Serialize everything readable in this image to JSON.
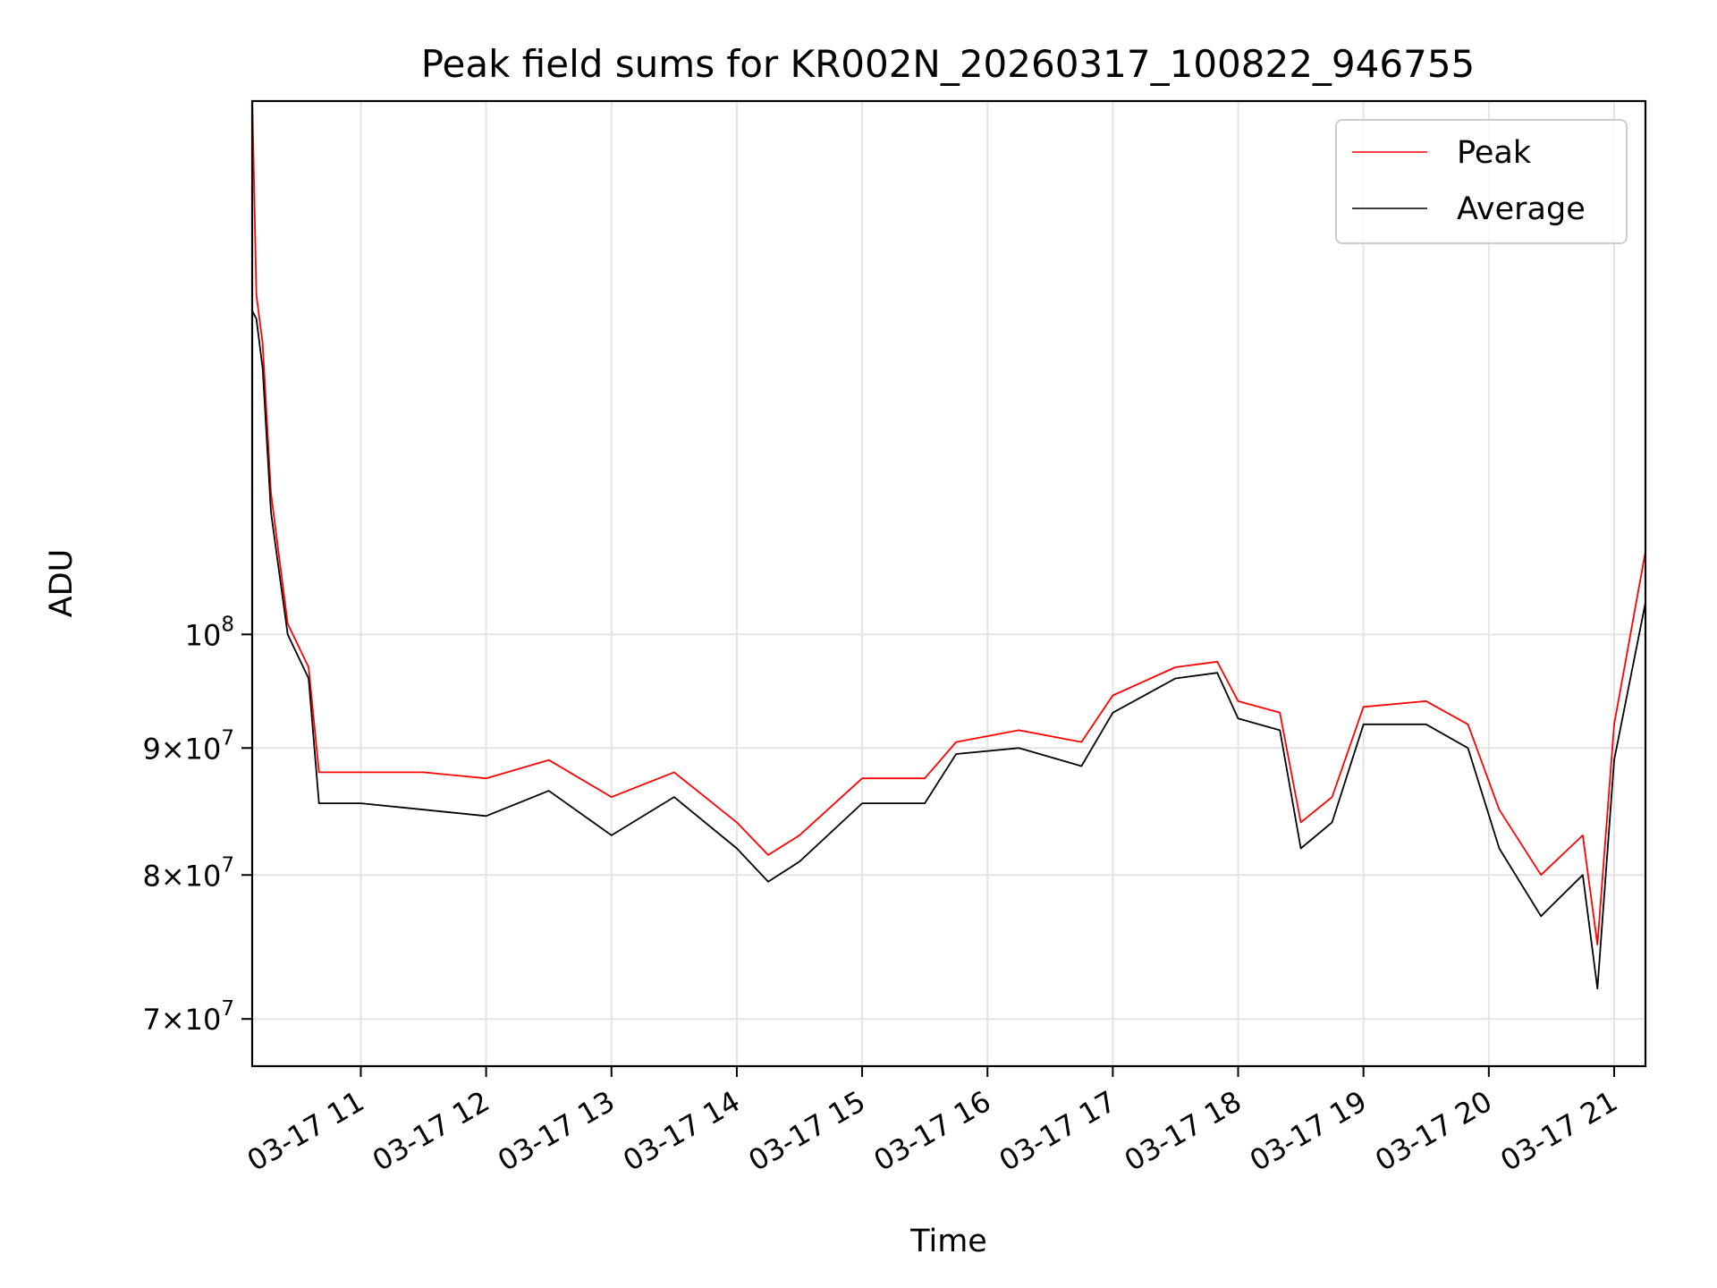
{
  "chart_data": {
    "type": "line",
    "title": "Peak field sums for KR002N_20260317_100822_946755",
    "xlabel": "Time",
    "ylabel": "ADU",
    "yscale": "log",
    "ylim": [
      67000000,
      164000000
    ],
    "xlim": [
      "2026-03-17T10:08",
      "2026-03-17T21:15"
    ],
    "grid": true,
    "legend_position": "upper right",
    "x_ticks": [
      {
        "value": "2026-03-17T11:00",
        "label": "03-17 11"
      },
      {
        "value": "2026-03-17T12:00",
        "label": "03-17 12"
      },
      {
        "value": "2026-03-17T13:00",
        "label": "03-17 13"
      },
      {
        "value": "2026-03-17T14:00",
        "label": "03-17 14"
      },
      {
        "value": "2026-03-17T15:00",
        "label": "03-17 15"
      },
      {
        "value": "2026-03-17T16:00",
        "label": "03-17 16"
      },
      {
        "value": "2026-03-17T17:00",
        "label": "03-17 17"
      },
      {
        "value": "2026-03-17T18:00",
        "label": "03-17 18"
      },
      {
        "value": "2026-03-17T19:00",
        "label": "03-17 19"
      },
      {
        "value": "2026-03-17T20:00",
        "label": "03-17 20"
      },
      {
        "value": "2026-03-17T21:00",
        "label": "03-17 21"
      }
    ],
    "y_ticks": [
      {
        "value": 70000000,
        "base": "7",
        "exp": "7"
      },
      {
        "value": 80000000,
        "base": "8",
        "exp": "7"
      },
      {
        "value": 90000000,
        "base": "9",
        "exp": "7"
      },
      {
        "value": 100000000,
        "base": "",
        "exp": "8"
      }
    ],
    "series": [
      {
        "name": "Peak",
        "color": "#ff0000",
        "x": [
          "2026-03-17T10:08",
          "2026-03-17T10:10",
          "2026-03-17T10:13",
          "2026-03-17T10:17",
          "2026-03-17T10:25",
          "2026-03-17T10:35",
          "2026-03-17T10:40",
          "2026-03-17T11:00",
          "2026-03-17T11:30",
          "2026-03-17T12:00",
          "2026-03-17T12:30",
          "2026-03-17T13:00",
          "2026-03-17T13:30",
          "2026-03-17T14:00",
          "2026-03-17T14:15",
          "2026-03-17T14:30",
          "2026-03-17T15:00",
          "2026-03-17T15:30",
          "2026-03-17T15:45",
          "2026-03-17T16:15",
          "2026-03-17T16:45",
          "2026-03-17T17:00",
          "2026-03-17T17:30",
          "2026-03-17T17:50",
          "2026-03-17T18:00",
          "2026-03-17T18:20",
          "2026-03-17T18:30",
          "2026-03-17T18:45",
          "2026-03-17T19:00",
          "2026-03-17T19:30",
          "2026-03-17T19:50",
          "2026-03-17T20:05",
          "2026-03-17T20:25",
          "2026-03-17T20:45",
          "2026-03-17T20:52",
          "2026-03-17T21:00",
          "2026-03-17T21:15"
        ],
        "y": [
          165000000,
          137000000,
          131000000,
          114000000,
          101000000,
          97000000,
          88000000,
          88000000,
          88000000,
          87500000,
          89000000,
          86000000,
          88000000,
          84000000,
          81500000,
          83000000,
          87500000,
          87500000,
          90500000,
          91500000,
          90500000,
          94500000,
          97000000,
          97500000,
          94000000,
          93000000,
          84000000,
          86000000,
          93500000,
          94000000,
          92000000,
          85000000,
          80000000,
          83000000,
          75000000,
          92000000,
          108000000
        ]
      },
      {
        "name": "Average",
        "color": "#000000",
        "x": [
          "2026-03-17T10:08",
          "2026-03-17T10:10",
          "2026-03-17T10:13",
          "2026-03-17T10:17",
          "2026-03-17T10:25",
          "2026-03-17T10:35",
          "2026-03-17T10:40",
          "2026-03-17T11:00",
          "2026-03-17T11:30",
          "2026-03-17T12:00",
          "2026-03-17T12:30",
          "2026-03-17T13:00",
          "2026-03-17T13:30",
          "2026-03-17T14:00",
          "2026-03-17T14:15",
          "2026-03-17T14:30",
          "2026-03-17T15:00",
          "2026-03-17T15:30",
          "2026-03-17T15:45",
          "2026-03-17T16:15",
          "2026-03-17T16:45",
          "2026-03-17T17:00",
          "2026-03-17T17:30",
          "2026-03-17T17:50",
          "2026-03-17T18:00",
          "2026-03-17T18:20",
          "2026-03-17T18:30",
          "2026-03-17T18:45",
          "2026-03-17T19:00",
          "2026-03-17T19:30",
          "2026-03-17T19:50",
          "2026-03-17T20:05",
          "2026-03-17T20:25",
          "2026-03-17T20:45",
          "2026-03-17T20:52",
          "2026-03-17T21:00",
          "2026-03-17T21:15"
        ],
        "y": [
          135000000,
          134000000,
          128000000,
          112000000,
          100000000,
          96000000,
          85500000,
          85500000,
          85000000,
          84500000,
          86500000,
          83000000,
          86000000,
          82000000,
          79500000,
          81000000,
          85500000,
          85500000,
          89500000,
          90000000,
          88500000,
          93000000,
          96000000,
          96500000,
          92500000,
          91500000,
          82000000,
          84000000,
          92000000,
          92000000,
          90000000,
          82000000,
          77000000,
          80000000,
          72000000,
          89000000,
          103000000
        ]
      }
    ]
  }
}
